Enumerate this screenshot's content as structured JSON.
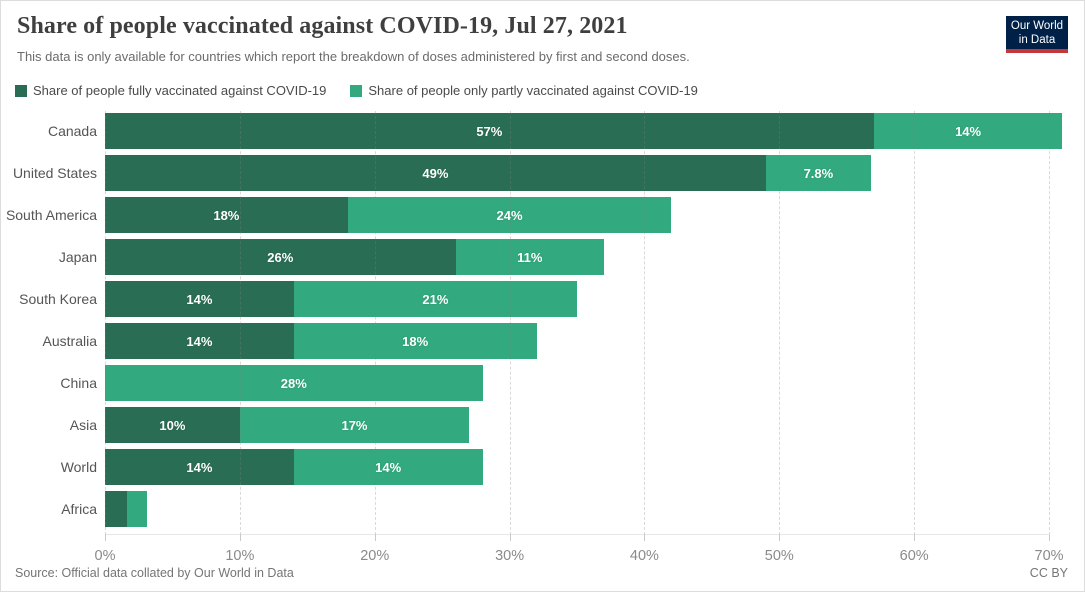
{
  "header": {
    "title": "Share of people vaccinated against COVID-19, Jul 27, 2021",
    "subtitle": "This data is only available for countries which report the breakdown of doses administered by first and second doses."
  },
  "logo": {
    "line1": "Our World",
    "line2": "in Data",
    "bg_color": "#002147",
    "strip_color": "#c5383a"
  },
  "legend": {
    "items": [
      {
        "label": "Share of people fully vaccinated against COVID-19",
        "color": "#2a6d55"
      },
      {
        "label": "Share of people only partly vaccinated against COVID-19",
        "color": "#32a97e"
      }
    ]
  },
  "chart_data": {
    "type": "bar",
    "orientation": "horizontal",
    "stacked": true,
    "grid": "dashed-vertical",
    "categories": [
      "Canada",
      "United States",
      "South America",
      "Japan",
      "South Korea",
      "Australia",
      "China",
      "Asia",
      "World",
      "Africa"
    ],
    "series": [
      {
        "name": "Share of people fully vaccinated against COVID-19",
        "color": "#2a6d55",
        "values": [
          57,
          49,
          18,
          26,
          14,
          14,
          0,
          10,
          14,
          1.6
        ],
        "labels": [
          "57%",
          "49%",
          "18%",
          "26%",
          "14%",
          "14%",
          "",
          "10%",
          "14%",
          ""
        ]
      },
      {
        "name": "Share of people only partly vaccinated against COVID-19",
        "color": "#32a97e",
        "values": [
          14,
          7.8,
          24,
          11,
          21,
          18,
          28,
          17,
          14,
          1.5
        ],
        "labels": [
          "14%",
          "7.8%",
          "24%",
          "11%",
          "21%",
          "18%",
          "28%",
          "17%",
          "14%",
          ""
        ]
      }
    ],
    "xlabel": "",
    "ylabel": "",
    "xlim": [
      0,
      72.6
    ],
    "x_tick_step": 10,
    "x_ticks": [
      "0%",
      "10%",
      "20%",
      "30%",
      "40%",
      "50%",
      "60%",
      "70%"
    ],
    "x_tick_values": [
      0,
      10,
      20,
      30,
      40,
      50,
      60,
      70
    ],
    "legend_position": "top"
  },
  "footer": {
    "source": "Source: Official data collated by Our World in Data",
    "license": "CC BY"
  }
}
